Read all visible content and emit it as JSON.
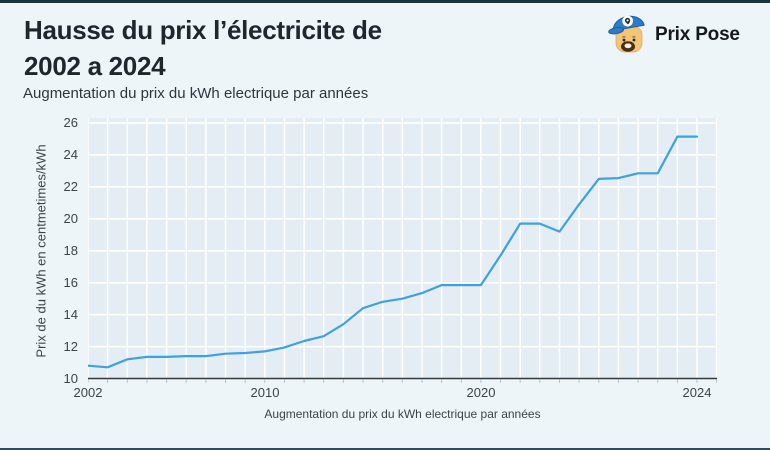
{
  "header": {
    "title_line1": "Hausse du prix l’électricite de",
    "title_line2": "2002 a 2024",
    "subtitle": "Augmentation du prix du kWh electrique par années"
  },
  "brand": {
    "name": "Prix Pose",
    "accent_blue": "#2b7cc5"
  },
  "chart_data": {
    "type": "line",
    "title": "Hausse du prix l’électricite de 2002 a 2024",
    "xlabel": "Augmentation du prix du kWh electrique par années",
    "ylabel": "Prix de du kWh en centmetimes/kWh",
    "ylim": [
      10,
      26
    ],
    "y_ticks": [
      10,
      12,
      14,
      16,
      18,
      20,
      22,
      24,
      26
    ],
    "x_tick_labels": [
      "2002",
      "2010",
      "2020",
      "2024"
    ],
    "x_tick_indices": [
      0,
      9,
      20,
      31
    ],
    "grid": true,
    "legend": false,
    "line_color": "#3fa2dc",
    "plot_bg": "#e3edf3",
    "grid_color": "#ffffff",
    "axis_color": "#34393d",
    "values": [
      10.8,
      10.7,
      11.2,
      11.35,
      11.35,
      11.4,
      11.4,
      11.55,
      11.6,
      11.7,
      11.95,
      12.35,
      12.65,
      13.4,
      14.4,
      14.8,
      15.0,
      15.35,
      15.85,
      15.85,
      15.85,
      17.7,
      19.7,
      19.7,
      19.2,
      20.9,
      22.5,
      22.55,
      22.85,
      22.85,
      25.15,
      25.15
    ]
  }
}
